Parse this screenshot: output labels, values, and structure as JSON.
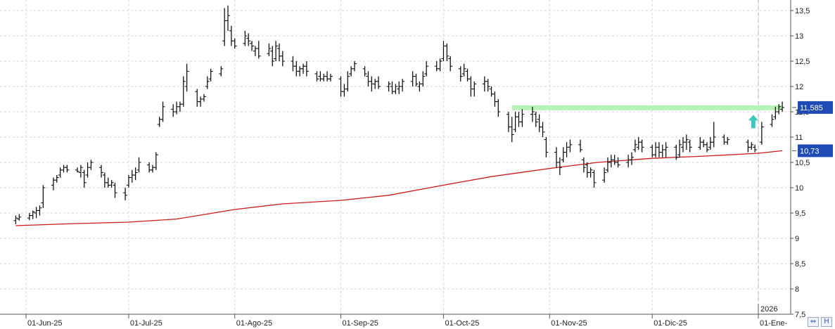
{
  "chart_data": {
    "type": "ohlc",
    "y_axis": {
      "position": "right",
      "ylim": [
        7.5,
        13.7
      ],
      "ticks": [
        "13,5",
        "13",
        "12,5",
        "12",
        "11,5",
        "11",
        "10,5",
        "10",
        "9,5",
        "9",
        "8,5",
        "8",
        "7,5"
      ],
      "tick_values": [
        13.5,
        13,
        12.5,
        12,
        11.5,
        11,
        10.5,
        10,
        9.5,
        9,
        8.5,
        8,
        7.5
      ]
    },
    "x_axis": {
      "tick_labels": [
        "01-Jun-25",
        "01-Jul-25",
        "01-Ago-25",
        "01-Sep-25",
        "01-Oct-25",
        "01-Nov-25",
        "01-Dic-25",
        "01-Ene-"
      ],
      "year_marker": "2026",
      "range": [
        "2025-05-29",
        "2026-01-09"
      ]
    },
    "grid": true,
    "price_badge": {
      "value": "11,585",
      "color": "#1f4bb5"
    },
    "ma_badge": {
      "value": "10,73",
      "color": "#1f4bb5"
    },
    "resistance_line": {
      "value": 11.58,
      "from": "2025-10-21",
      "to": "2026-01-05",
      "color": "#b7f2b7"
    },
    "arrow": {
      "date": "2026-01-02",
      "value": 11.3,
      "color": "#3ec9c0",
      "direction": "up"
    },
    "moving_average": {
      "color": "#cc1a1a",
      "points": [
        [
          "2025-05-29",
          9.25
        ],
        [
          "2025-06-15",
          9.29
        ],
        [
          "2025-07-01",
          9.32
        ],
        [
          "2025-07-15",
          9.38
        ],
        [
          "2025-08-01",
          9.57
        ],
        [
          "2025-08-15",
          9.68
        ],
        [
          "2025-09-01",
          9.75
        ],
        [
          "2025-09-15",
          9.85
        ],
        [
          "2025-10-01",
          10.05
        ],
        [
          "2025-10-15",
          10.22
        ],
        [
          "2025-11-01",
          10.38
        ],
        [
          "2025-11-15",
          10.5
        ],
        [
          "2025-12-01",
          10.58
        ],
        [
          "2025-12-15",
          10.62
        ],
        [
          "2026-01-01",
          10.68
        ],
        [
          "2026-01-08",
          10.73
        ]
      ]
    },
    "bars": [
      [
        "2025-05-29",
        9.28,
        9.45,
        9.35,
        9.4
      ],
      [
        "2025-05-30",
        9.35,
        9.48,
        9.38,
        9.42
      ],
      [
        "2025-06-02",
        9.36,
        9.5,
        9.4,
        9.45
      ],
      [
        "2025-06-03",
        9.38,
        9.55,
        9.45,
        9.52
      ],
      [
        "2025-06-04",
        9.4,
        9.62,
        9.5,
        9.55
      ],
      [
        "2025-06-05",
        9.45,
        9.65,
        9.55,
        9.6
      ],
      [
        "2025-06-06",
        9.6,
        10.05,
        9.7,
        10.0
      ],
      [
        "2025-06-09",
        9.95,
        10.2,
        10.05,
        10.15
      ],
      [
        "2025-06-10",
        10.1,
        10.25,
        10.15,
        10.2
      ],
      [
        "2025-06-11",
        10.2,
        10.4,
        10.25,
        10.35
      ],
      [
        "2025-06-12",
        10.3,
        10.45,
        10.35,
        10.4
      ],
      [
        "2025-06-13",
        10.3,
        10.45,
        10.4,
        10.35
      ],
      [
        "2025-06-16",
        10.3,
        10.4,
        10.35,
        10.32
      ],
      [
        "2025-06-17",
        10.2,
        10.45,
        10.3,
        10.4
      ],
      [
        "2025-06-18",
        10.0,
        10.35,
        10.3,
        10.1
      ],
      [
        "2025-06-19",
        10.2,
        10.5,
        10.25,
        10.4
      ],
      [
        "2025-06-20",
        10.35,
        10.55,
        10.4,
        10.5
      ],
      [
        "2025-06-23",
        10.2,
        10.45,
        10.4,
        10.3
      ],
      [
        "2025-06-24",
        10.0,
        10.3,
        10.25,
        10.1
      ],
      [
        "2025-06-25",
        10.0,
        10.2,
        10.1,
        10.05
      ],
      [
        "2025-06-26",
        10.0,
        10.15,
        10.05,
        10.1
      ],
      [
        "2025-06-27",
        9.8,
        10.1,
        10.05,
        9.9
      ],
      [
        "2025-06-30",
        9.75,
        10.0,
        9.9,
        9.85
      ],
      [
        "2025-07-01",
        10.0,
        10.25,
        10.05,
        10.2
      ],
      [
        "2025-07-02",
        10.1,
        10.35,
        10.2,
        10.25
      ],
      [
        "2025-07-03",
        10.15,
        10.4,
        10.25,
        10.3
      ],
      [
        "2025-07-04",
        10.3,
        10.6,
        10.35,
        10.5
      ],
      [
        "2025-07-07",
        10.3,
        10.5,
        10.45,
        10.35
      ],
      [
        "2025-07-08",
        10.3,
        10.45,
        10.35,
        10.4
      ],
      [
        "2025-07-09",
        10.35,
        10.7,
        10.4,
        10.65
      ],
      [
        "2025-07-10",
        11.2,
        11.4,
        11.25,
        11.35
      ],
      [
        "2025-07-11",
        11.3,
        11.7,
        11.35,
        11.6
      ],
      [
        "2025-07-14",
        11.4,
        11.65,
        11.55,
        11.5
      ],
      [
        "2025-07-15",
        11.45,
        11.7,
        11.5,
        11.6
      ],
      [
        "2025-07-16",
        11.5,
        11.7,
        11.6,
        11.65
      ],
      [
        "2025-07-17",
        11.6,
        12.2,
        11.65,
        12.1
      ],
      [
        "2025-07-18",
        11.9,
        12.45,
        12.0,
        12.3
      ],
      [
        "2025-07-21",
        11.6,
        11.95,
        11.9,
        11.7
      ],
      [
        "2025-07-22",
        11.6,
        11.8,
        11.7,
        11.75
      ],
      [
        "2025-07-23",
        11.7,
        11.85,
        11.75,
        11.8
      ],
      [
        "2025-07-24",
        11.95,
        12.2,
        12.0,
        12.1
      ],
      [
        "2025-07-25",
        12.1,
        12.35,
        12.15,
        12.3
      ],
      [
        "2025-07-28",
        12.2,
        12.4,
        12.25,
        12.35
      ],
      [
        "2025-07-29",
        12.8,
        13.55,
        12.9,
        13.3
      ],
      [
        "2025-07-30",
        13.1,
        13.6,
        13.3,
        13.4
      ],
      [
        "2025-07-31",
        12.8,
        13.2,
        13.1,
        12.9
      ],
      [
        "2025-08-01",
        12.75,
        12.95,
        12.9,
        12.8
      ],
      [
        "2025-08-04",
        12.8,
        13.1,
        12.85,
        13.0
      ],
      [
        "2025-08-05",
        12.8,
        13.05,
        12.95,
        12.9
      ],
      [
        "2025-08-06",
        12.7,
        12.9,
        12.85,
        12.8
      ],
      [
        "2025-08-07",
        12.6,
        12.8,
        12.7,
        12.75
      ],
      [
        "2025-08-08",
        12.55,
        12.9,
        12.75,
        12.6
      ],
      [
        "2025-08-11",
        12.6,
        12.85,
        12.65,
        12.75
      ],
      [
        "2025-08-12",
        12.4,
        12.8,
        12.7,
        12.5
      ],
      [
        "2025-08-13",
        12.5,
        12.9,
        12.55,
        12.8
      ],
      [
        "2025-08-14",
        12.5,
        12.85,
        12.75,
        12.6
      ],
      [
        "2025-08-15",
        12.4,
        12.7,
        12.6,
        12.5
      ],
      [
        "2025-08-18",
        12.3,
        12.6,
        12.5,
        12.4
      ],
      [
        "2025-08-19",
        12.2,
        12.5,
        12.4,
        12.3
      ],
      [
        "2025-08-20",
        12.2,
        12.4,
        12.3,
        12.35
      ],
      [
        "2025-08-21",
        12.25,
        12.45,
        12.35,
        12.4
      ],
      [
        "2025-08-22",
        12.2,
        12.5,
        12.4,
        12.3
      ],
      [
        "2025-08-25",
        12.1,
        12.3,
        12.25,
        12.15
      ],
      [
        "2025-08-26",
        12.1,
        12.3,
        12.2,
        12.15
      ],
      [
        "2025-08-27",
        12.1,
        12.25,
        12.15,
        12.2
      ],
      [
        "2025-08-28",
        12.1,
        12.3,
        12.2,
        12.15
      ],
      [
        "2025-08-29",
        12.1,
        12.25,
        12.15,
        12.2
      ],
      [
        "2025-09-01",
        11.8,
        12.2,
        12.15,
        11.9
      ],
      [
        "2025-09-02",
        11.8,
        12.05,
        11.9,
        11.95
      ],
      [
        "2025-09-03",
        11.9,
        12.3,
        11.95,
        12.2
      ],
      [
        "2025-09-04",
        12.2,
        12.4,
        12.25,
        12.35
      ],
      [
        "2025-09-05",
        12.3,
        12.5,
        12.35,
        12.45
      ],
      [
        "2025-09-08",
        12.2,
        12.4,
        12.35,
        12.25
      ],
      [
        "2025-09-09",
        12.0,
        12.3,
        12.2,
        12.1
      ],
      [
        "2025-09-10",
        11.9,
        12.2,
        12.1,
        12.05
      ],
      [
        "2025-09-11",
        11.95,
        12.15,
        12.05,
        12.1
      ],
      [
        "2025-09-12",
        11.95,
        12.2,
        12.1,
        12.0
      ],
      [
        "2025-09-15",
        11.9,
        12.1,
        12.0,
        12.05
      ],
      [
        "2025-09-16",
        11.85,
        12.1,
        12.0,
        11.9
      ],
      [
        "2025-09-17",
        11.85,
        12.05,
        11.9,
        12.0
      ],
      [
        "2025-09-18",
        11.85,
        12.1,
        11.95,
        12.0
      ],
      [
        "2025-09-19",
        11.9,
        12.15,
        12.0,
        12.1
      ],
      [
        "2025-09-22",
        12.0,
        12.3,
        12.1,
        12.2
      ],
      [
        "2025-09-23",
        12.0,
        12.25,
        12.2,
        12.05
      ],
      [
        "2025-09-24",
        11.9,
        12.1,
        12.0,
        12.05
      ],
      [
        "2025-09-25",
        12.0,
        12.3,
        12.05,
        12.2
      ],
      [
        "2025-09-26",
        12.2,
        12.5,
        12.25,
        12.4
      ],
      [
        "2025-09-29",
        12.3,
        12.5,
        12.4,
        12.35
      ],
      [
        "2025-09-30",
        12.3,
        12.55,
        12.35,
        12.5
      ],
      [
        "2025-10-01",
        12.5,
        12.9,
        12.55,
        12.8
      ],
      [
        "2025-10-02",
        12.5,
        12.85,
        12.8,
        12.6
      ],
      [
        "2025-10-03",
        12.3,
        12.6,
        12.55,
        12.4
      ],
      [
        "2025-10-06",
        12.1,
        12.4,
        12.35,
        12.2
      ],
      [
        "2025-10-07",
        12.2,
        12.45,
        12.25,
        12.35
      ],
      [
        "2025-10-08",
        12.1,
        12.35,
        12.3,
        12.15
      ],
      [
        "2025-10-09",
        11.8,
        12.2,
        12.15,
        11.95
      ],
      [
        "2025-10-10",
        11.8,
        12.1,
        11.95,
        12.05
      ],
      [
        "2025-10-13",
        11.9,
        12.2,
        12.05,
        12.1
      ],
      [
        "2025-10-14",
        11.9,
        12.15,
        12.1,
        12.0
      ],
      [
        "2025-10-15",
        11.8,
        12.0,
        11.95,
        11.85
      ],
      [
        "2025-10-16",
        11.6,
        11.9,
        11.85,
        11.7
      ],
      [
        "2025-10-17",
        11.4,
        11.75,
        11.7,
        11.5
      ],
      [
        "2025-10-20",
        11.1,
        11.5,
        11.45,
        11.2
      ],
      [
        "2025-10-21",
        10.9,
        11.4,
        11.2,
        11.05
      ],
      [
        "2025-10-22",
        11.1,
        11.5,
        11.15,
        11.4
      ],
      [
        "2025-10-23",
        11.2,
        11.5,
        11.4,
        11.3
      ],
      [
        "2025-10-24",
        11.2,
        11.55,
        11.3,
        11.45
      ],
      [
        "2025-10-27",
        11.3,
        11.6,
        11.45,
        11.5
      ],
      [
        "2025-10-28",
        11.2,
        11.5,
        11.45,
        11.3
      ],
      [
        "2025-10-29",
        11.1,
        11.45,
        11.35,
        11.2
      ],
      [
        "2025-10-30",
        11.0,
        11.3,
        11.2,
        11.1
      ],
      [
        "2025-10-31",
        10.6,
        11.0,
        10.95,
        10.7
      ],
      [
        "2025-11-03",
        10.4,
        10.8,
        10.7,
        10.5
      ],
      [
        "2025-11-04",
        10.25,
        10.6,
        10.5,
        10.4
      ],
      [
        "2025-11-05",
        10.5,
        10.8,
        10.55,
        10.7
      ],
      [
        "2025-11-06",
        10.6,
        10.9,
        10.7,
        10.8
      ],
      [
        "2025-11-07",
        10.7,
        10.95,
        10.8,
        10.85
      ],
      [
        "2025-11-10",
        10.7,
        10.95,
        10.85,
        10.75
      ],
      [
        "2025-11-11",
        10.3,
        10.6,
        10.55,
        10.4
      ],
      [
        "2025-11-12",
        10.2,
        10.5,
        10.45,
        10.3
      ],
      [
        "2025-11-13",
        10.2,
        10.4,
        10.3,
        10.35
      ],
      [
        "2025-11-14",
        10.0,
        10.35,
        10.3,
        10.1
      ],
      [
        "2025-11-17",
        10.1,
        10.4,
        10.15,
        10.3
      ],
      [
        "2025-11-18",
        10.3,
        10.6,
        10.35,
        10.5
      ],
      [
        "2025-11-19",
        10.4,
        10.65,
        10.5,
        10.55
      ],
      [
        "2025-11-20",
        10.45,
        10.65,
        10.55,
        10.5
      ],
      [
        "2025-11-21",
        10.4,
        10.6,
        10.5,
        10.45
      ],
      [
        "2025-11-24",
        10.4,
        10.65,
        10.5,
        10.55
      ],
      [
        "2025-11-25",
        10.45,
        10.7,
        10.55,
        10.6
      ],
      [
        "2025-11-26",
        10.7,
        10.95,
        10.75,
        10.85
      ],
      [
        "2025-11-27",
        10.75,
        11.0,
        10.8,
        10.9
      ],
      [
        "2025-11-28",
        10.7,
        10.95,
        10.9,
        10.8
      ],
      [
        "2025-12-01",
        10.6,
        10.85,
        10.8,
        10.65
      ],
      [
        "2025-12-02",
        10.6,
        10.9,
        10.65,
        10.8
      ],
      [
        "2025-12-03",
        10.6,
        10.9,
        10.8,
        10.7
      ],
      [
        "2025-12-04",
        10.6,
        10.85,
        10.7,
        10.75
      ],
      [
        "2025-12-05",
        10.6,
        10.9,
        10.75,
        10.8
      ],
      [
        "2025-12-08",
        10.55,
        10.85,
        10.8,
        10.6
      ],
      [
        "2025-12-09",
        10.6,
        10.95,
        10.65,
        10.85
      ],
      [
        "2025-12-10",
        10.7,
        11.0,
        10.8,
        10.9
      ],
      [
        "2025-12-11",
        10.75,
        11.05,
        10.9,
        10.95
      ],
      [
        "2025-12-12",
        10.7,
        10.95,
        10.9,
        10.8
      ],
      [
        "2025-12-15",
        10.75,
        11.0,
        10.8,
        10.9
      ],
      [
        "2025-12-16",
        10.8,
        10.95,
        10.9,
        10.85
      ],
      [
        "2025-12-17",
        10.7,
        10.9,
        10.85,
        10.75
      ],
      [
        "2025-12-18",
        10.75,
        11.0,
        10.8,
        10.9
      ],
      [
        "2025-12-19",
        10.8,
        11.3,
        10.9,
        11.0
      ],
      [
        "2025-12-22",
        10.85,
        11.05,
        11.0,
        10.9
      ],
      [
        "2025-12-23",
        10.85,
        11.0,
        10.9,
        10.95
      ],
      [
        "2025-12-29",
        10.7,
        10.95,
        10.9,
        10.8
      ],
      [
        "2025-12-30",
        10.75,
        10.9,
        10.8,
        10.85
      ],
      [
        "2025-12-31",
        10.7,
        10.85,
        10.8,
        10.75
      ],
      [
        "2026-01-02",
        10.85,
        11.3,
        10.9,
        11.2
      ],
      [
        "2026-01-05",
        11.2,
        11.45,
        11.25,
        11.35
      ],
      [
        "2026-01-06",
        11.35,
        11.6,
        11.4,
        11.5
      ],
      [
        "2026-01-07",
        11.45,
        11.65,
        11.5,
        11.6
      ],
      [
        "2026-01-08",
        11.5,
        11.7,
        11.55,
        11.585
      ]
    ]
  },
  "controls": {
    "scroll_icon": "⇔",
    "hold_icon": "H"
  }
}
